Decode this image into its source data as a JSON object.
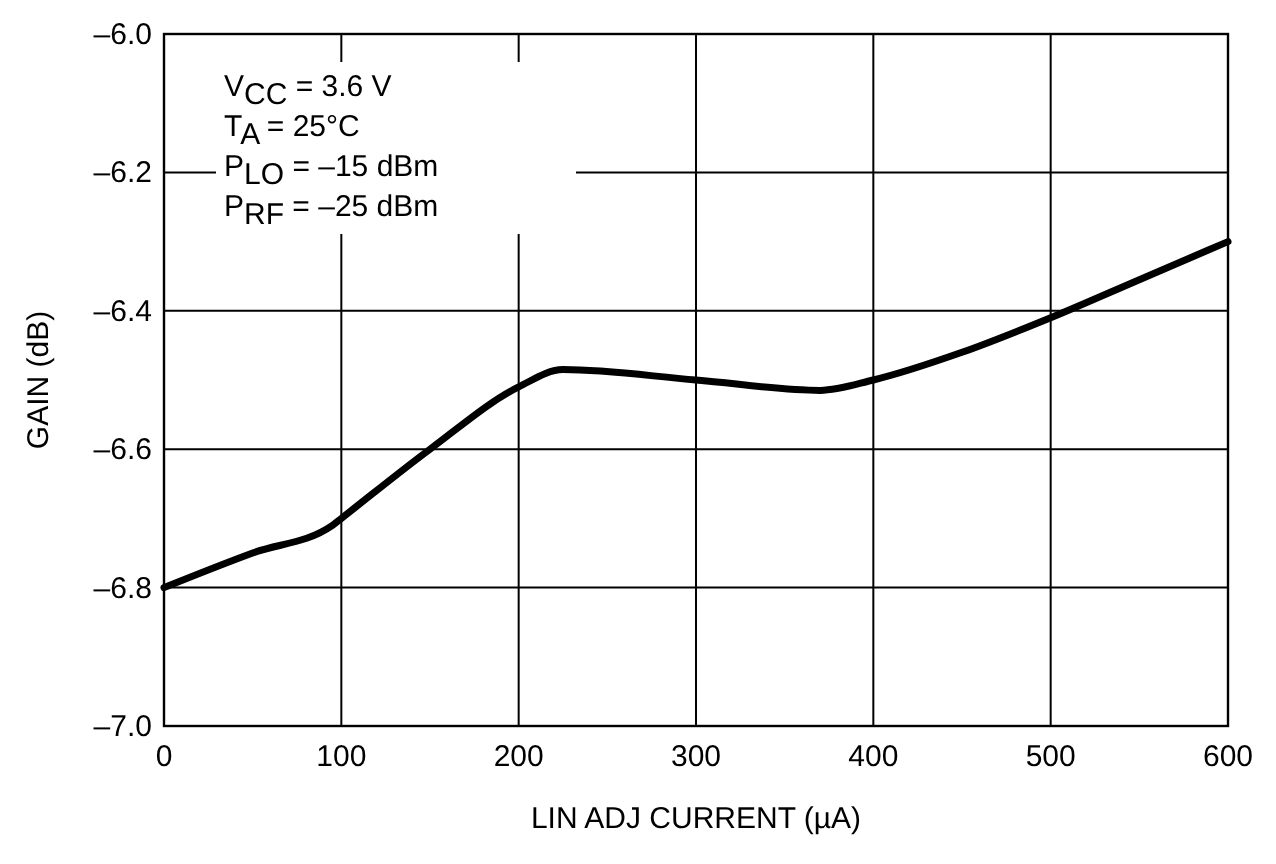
{
  "chart_data": {
    "type": "line",
    "xlabel": "LIN ADJ CURRENT (µA)",
    "ylabel": "GAIN (dB)",
    "annotations": [
      "V$_{CC}$ = 3.6 V",
      "T$_{A}$ = 25°C",
      "P$_{LO}$ = –15 dBm",
      "P$_{RF}$ = –25 dBm"
    ],
    "x": [
      0,
      50,
      95,
      100,
      150,
      200,
      225,
      300,
      370,
      400,
      450,
      500,
      550,
      600
    ],
    "series": [
      {
        "color": "#000000",
        "values": [
          -6.8,
          -6.75,
          -6.71,
          -6.7,
          -6.6,
          -6.51,
          -6.485,
          -6.5,
          -6.515,
          -6.5,
          -6.46,
          -6.41,
          -6.355,
          -6.3
        ]
      }
    ],
    "xlim": [
      0,
      600
    ],
    "xticks": [
      0,
      100,
      200,
      300,
      400,
      500,
      600
    ],
    "ylim": [
      -7,
      -6
    ],
    "yticks": [
      {
        "value": -7,
        "label": "–7.0"
      },
      {
        "value": -6.8,
        "label": "–6.8"
      },
      {
        "value": -6.6,
        "label": "–6.6"
      },
      {
        "value": -6.4,
        "label": "–6.4"
      },
      {
        "value": -6.2,
        "label": "–6.2"
      },
      {
        "value": -6,
        "label": "–6.0"
      }
    ],
    "grid": true,
    "line_style": "solid",
    "marker": "none"
  }
}
